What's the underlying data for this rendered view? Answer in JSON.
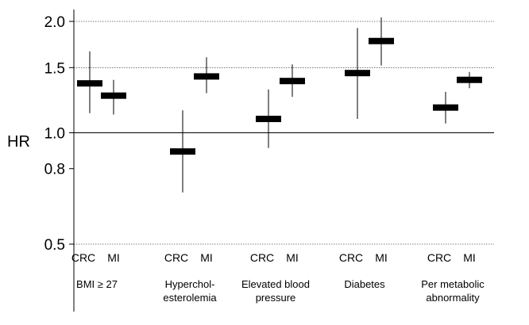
{
  "chart_data": {
    "type": "scatter",
    "ylabel": "HR",
    "yscale": "log",
    "ylim": [
      0.5,
      2.0
    ],
    "yticks": [
      "2.0",
      "1.5",
      "1.0",
      "0.8",
      "0.5"
    ],
    "dotted_gridlines": [
      2.0,
      1.5,
      0.5
    ],
    "reference_line": 1.0,
    "groups": [
      {
        "label_lines": [
          "BMI ≥ 27"
        ],
        "points": [
          {
            "name": "CRC",
            "hr": 1.36,
            "lower": 1.13,
            "upper": 1.66
          },
          {
            "name": "MI",
            "hr": 1.26,
            "lower": 1.12,
            "upper": 1.39
          }
        ]
      },
      {
        "label_lines": [
          "Hyperchol-",
          "esterolemia"
        ],
        "points": [
          {
            "name": "CRC",
            "hr": 0.89,
            "lower": 0.69,
            "upper": 1.15
          },
          {
            "name": "MI",
            "hr": 1.42,
            "lower": 1.28,
            "upper": 1.6
          }
        ]
      },
      {
        "label_lines": [
          "Elevated blood",
          "pressure"
        ],
        "points": [
          {
            "name": "CRC",
            "hr": 1.09,
            "lower": 0.91,
            "upper": 1.31
          },
          {
            "name": "MI",
            "hr": 1.38,
            "lower": 1.25,
            "upper": 1.53
          }
        ]
      },
      {
        "label_lines": [
          "Diabetes"
        ],
        "points": [
          {
            "name": "CRC",
            "hr": 1.45,
            "lower": 1.09,
            "upper": 1.92
          },
          {
            "name": "MI",
            "hr": 1.77,
            "lower": 1.52,
            "upper": 2.05
          }
        ]
      },
      {
        "label_lines": [
          "Per metabolic",
          "abnormality"
        ],
        "points": [
          {
            "name": "CRC",
            "hr": 1.17,
            "lower": 1.06,
            "upper": 1.29
          },
          {
            "name": "MI",
            "hr": 1.39,
            "lower": 1.32,
            "upper": 1.46
          }
        ]
      }
    ]
  }
}
